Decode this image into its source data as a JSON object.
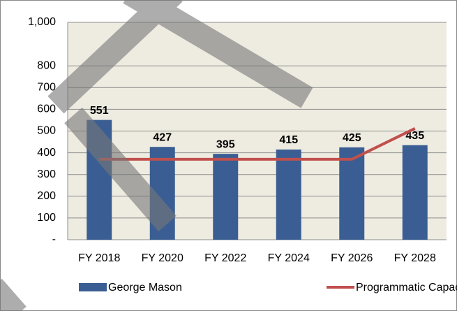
{
  "chart_data": {
    "type": "bar",
    "categories": [
      "FY 2018",
      "FY 2020",
      "FY 2022",
      "FY 2024",
      "FY 2026",
      "FY 2028"
    ],
    "series": [
      {
        "name": "George Mason",
        "type": "bar",
        "color": "#3a5e93",
        "values": [
          551,
          427,
          395,
          415,
          425,
          435
        ]
      },
      {
        "name": "Programmatic Capacity",
        "type": "line",
        "color": "#c0504d",
        "values": [
          370,
          370,
          370,
          370,
          370,
          512
        ]
      }
    ],
    "ylim": [
      0,
      1000
    ],
    "yticks": [
      {
        "value": 0,
        "label": "-"
      },
      100,
      200,
      300,
      400,
      500,
      600,
      700,
      800,
      {
        "value": 1000,
        "label": "1,000"
      }
    ],
    "grid": true,
    "legend": "bottom"
  }
}
